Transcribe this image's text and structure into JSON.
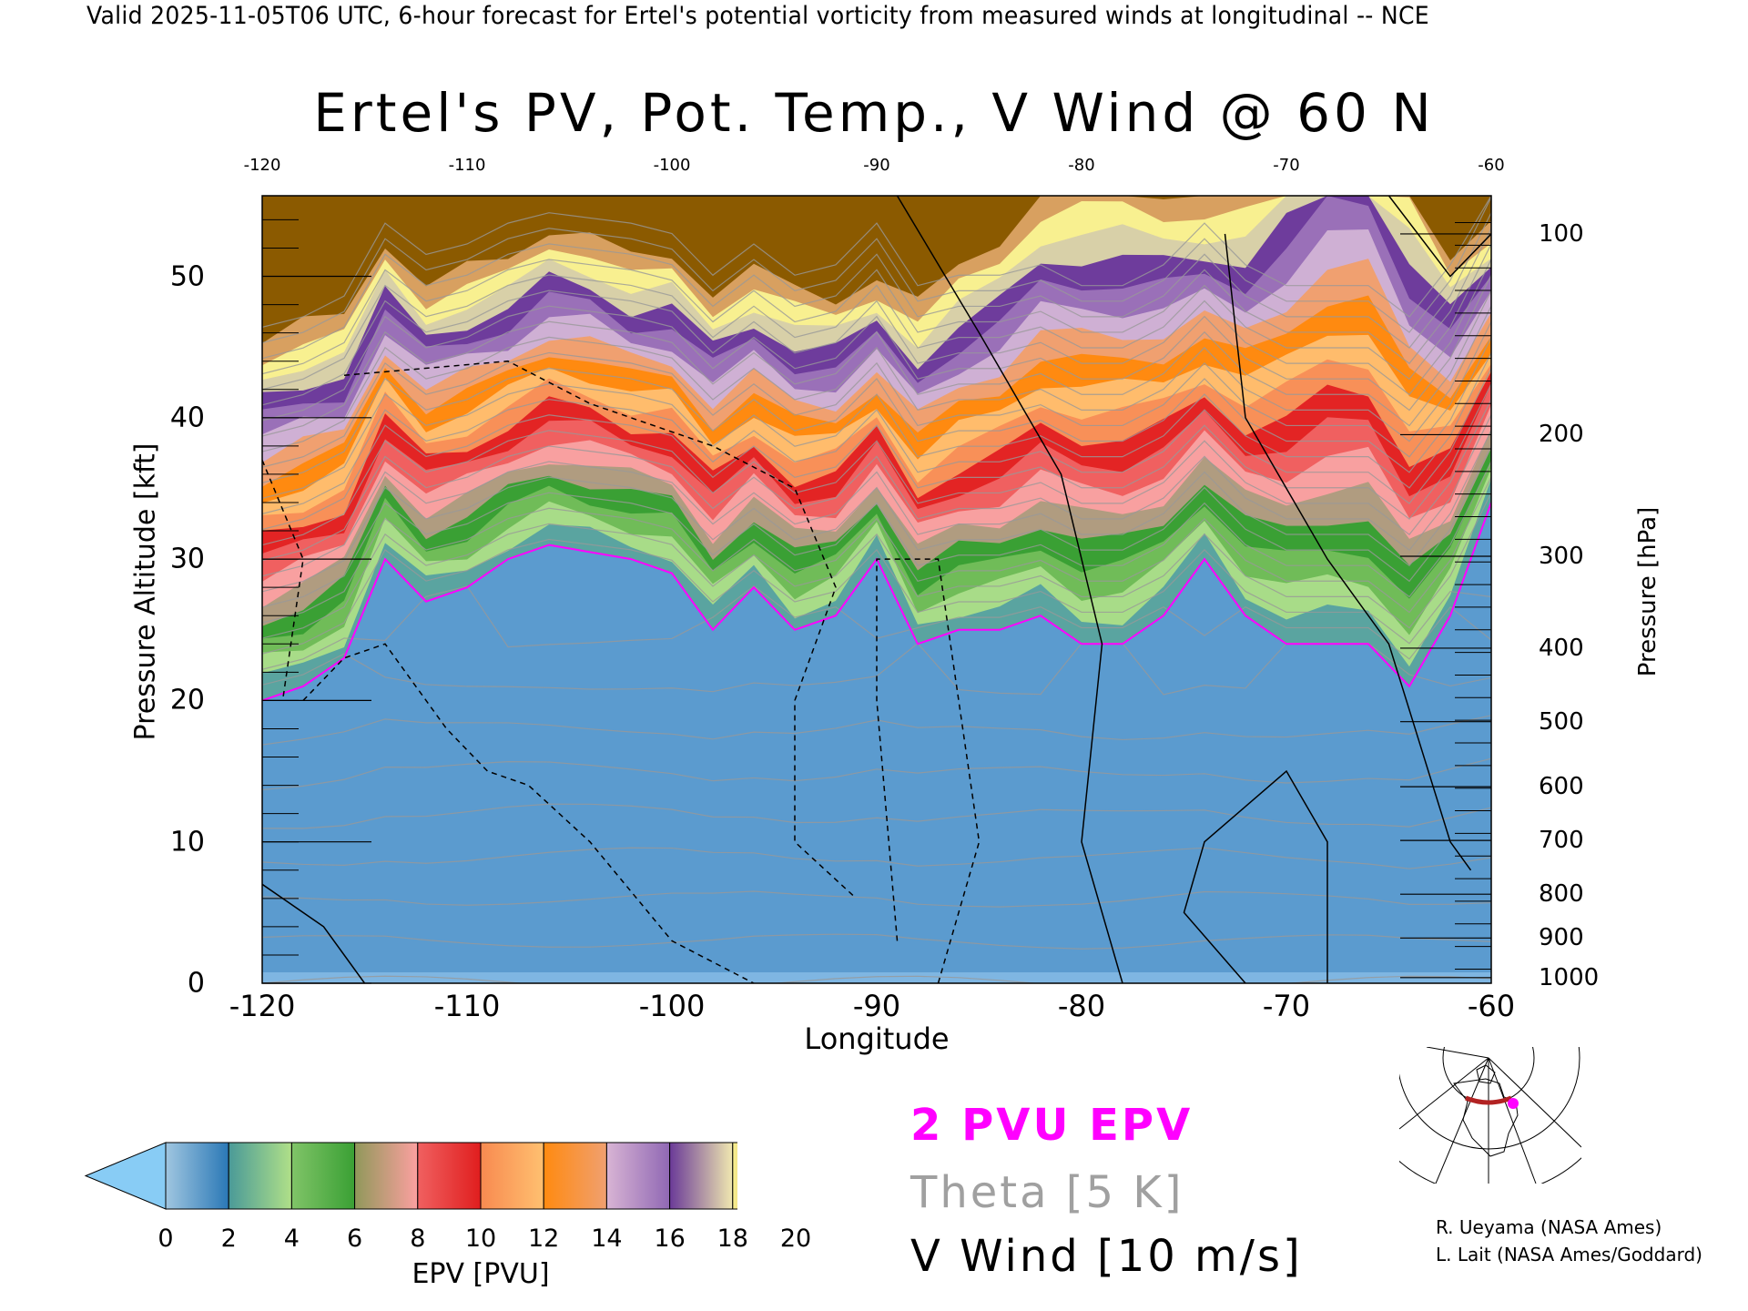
{
  "header": "Valid 2025-11-05T06 UTC, 6-hour forecast for Ertel's potential vorticity from measured winds at longitudinal -- NCE",
  "legend": {
    "pv_line": "2 PVU EPV",
    "theta": "Theta [5 K]",
    "wind": "V Wind [10 m/s]",
    "colors": {
      "pv_line": "#ff00ff",
      "theta": "#a0a0a0",
      "wind": "#000000"
    }
  },
  "credits": [
    "R. Ueyama (NASA Ames)",
    "L. Lait (NASA Ames/Goddard)"
  ],
  "chart_data": {
    "type": "heatmap",
    "title": "Ertel's PV, Pot. Temp., V Wind @ 60 N",
    "xlabel": "Longitude",
    "ylabel": "Pressure Altitude [kft]",
    "y2label": "Pressure [hPa]",
    "xlim": [
      -120,
      -60
    ],
    "ylim": [
      0,
      55.7
    ],
    "x_ticks": [
      "-120",
      "-110",
      "-100",
      "-90",
      "-80",
      "-70",
      "-60"
    ],
    "top_ticks": [
      "-120",
      "-110",
      "-100",
      "-90",
      "-80",
      "-70",
      "-60"
    ],
    "y_ticks": [
      "0",
      "10",
      "20",
      "30",
      "40",
      "50"
    ],
    "pressure_ticks": [
      {
        "label": "100",
        "kft": 53.0
      },
      {
        "label": "200",
        "kft": 38.8
      },
      {
        "label": "300",
        "kft": 30.2
      },
      {
        "label": "400",
        "kft": 23.7
      },
      {
        "label": "500",
        "kft": 18.5
      },
      {
        "label": "600",
        "kft": 13.9
      },
      {
        "label": "700",
        "kft": 10.1
      },
      {
        "label": "800",
        "kft": 6.3
      },
      {
        "label": "900",
        "kft": 3.2
      },
      {
        "label": "1000",
        "kft": 0.4
      }
    ],
    "colorbar": {
      "label": "EPV [PVU]",
      "ticks": [
        "0",
        "2",
        "4",
        "6",
        "8",
        "10",
        "12",
        "14",
        "16",
        "18",
        "20"
      ],
      "under_color": "#88ccf5",
      "over_color": "#8b5a00",
      "bands": [
        [
          "#a0c6e0",
          "#2a78b6"
        ],
        [
          "#4a9a98",
          "#b0e088"
        ],
        [
          "#80c468",
          "#3aa034"
        ],
        [
          "#90985a",
          "#fca0a0"
        ],
        [
          "#f06060",
          "#e01e1e"
        ],
        [
          "#f88a50",
          "#ffc070"
        ],
        [
          "#ff8a10",
          "#f0a070"
        ],
        [
          "#d8b4d4",
          "#9068b4"
        ],
        [
          "#6a3a98",
          "#f0e8b0"
        ],
        [
          "#f8f090",
          "#b86830"
        ]
      ]
    },
    "longitudes": [
      -120,
      -118,
      -116,
      -114,
      -112,
      -110,
      -108,
      -106,
      -104,
      -102,
      -100,
      -98,
      -96,
      -94,
      -92,
      -90,
      -88,
      -86,
      -84,
      -82,
      -80,
      -78,
      -76,
      -74,
      -72,
      -70,
      -68,
      -66,
      -64,
      -62,
      -60
    ],
    "tropopause_2pvu_kft": [
      20,
      21,
      23,
      30,
      27,
      28,
      30,
      31,
      30.5,
      30,
      29,
      25,
      28,
      25,
      26,
      30,
      24,
      25,
      25,
      26,
      24,
      24,
      26,
      30,
      26,
      24,
      24,
      24,
      21,
      26,
      34
    ],
    "pv_lapse_pvu_per_kft": [
      0.7,
      0.7,
      0.75,
      0.8,
      0.8,
      0.8,
      0.85,
      0.8,
      0.8,
      0.85,
      0.8,
      0.75,
      0.8,
      0.75,
      0.8,
      0.9,
      0.75,
      0.7,
      0.65,
      0.6,
      0.55,
      0.55,
      0.6,
      0.7,
      0.6,
      0.5,
      0.45,
      0.45,
      0.5,
      0.7,
      0.9
    ],
    "pv_level_colors": [
      "#5aa4a0",
      "#a8dc88",
      "#70bc58",
      "#3aa034",
      "#b09c80",
      "#f8a0a0",
      "#f06060",
      "#e32424",
      "#f89058",
      "#ffbc6c",
      "#ff8a10",
      "#f0a070",
      "#cfb0d4",
      "#9a70b8",
      "#6e3c9c",
      "#d8d0a8",
      "#f8f090",
      "#d8a060",
      "#8b5a00"
    ],
    "troposphere_color": "#5b9bcf",
    "theta_levels_K": {
      "min": 270,
      "max": 420,
      "step": 5
    },
    "v_wind_contours": [
      {
        "value": 0,
        "style": "solid",
        "points": [
          [
            -89,
            55.7
          ],
          [
            -85,
            46
          ],
          [
            -81,
            36
          ],
          [
            -79,
            24
          ],
          [
            -80,
            10
          ],
          [
            -78,
            0
          ]
        ]
      },
      {
        "value": 0,
        "style": "solid",
        "points": [
          [
            -120,
            7
          ],
          [
            -117,
            4
          ],
          [
            -115,
            0
          ]
        ]
      },
      {
        "value": 10,
        "style": "solid",
        "points": [
          [
            -73,
            53
          ],
          [
            -72,
            40
          ],
          [
            -68,
            30
          ],
          [
            -65,
            24
          ],
          [
            -62,
            10
          ],
          [
            -61,
            8
          ]
        ]
      },
      {
        "value": 10,
        "style": "solid",
        "points": [
          [
            -72,
            0
          ],
          [
            -75,
            5
          ],
          [
            -74,
            10
          ],
          [
            -70,
            15
          ],
          [
            -68,
            10
          ],
          [
            -68,
            0
          ]
        ]
      },
      {
        "value": 10,
        "style": "solid",
        "points": [
          [
            -65,
            55.7
          ],
          [
            -62,
            50
          ],
          [
            -60,
            53
          ]
        ]
      },
      {
        "value": -10,
        "style": "dashed",
        "points": [
          [
            -120,
            37
          ],
          [
            -118,
            30
          ],
          [
            -119,
            20
          ]
        ]
      },
      {
        "value": -10,
        "style": "dashed",
        "points": [
          [
            -118,
            20
          ],
          [
            -116,
            23
          ],
          [
            -114,
            24
          ],
          [
            -111,
            18
          ],
          [
            -109,
            15
          ],
          [
            -107,
            14
          ],
          [
            -104,
            10
          ],
          [
            -100,
            3
          ],
          [
            -96,
            0
          ]
        ]
      },
      {
        "value": -10,
        "style": "dashed",
        "points": [
          [
            -116,
            43
          ],
          [
            -108,
            44
          ],
          [
            -104,
            41
          ],
          [
            -98,
            38
          ],
          [
            -94,
            35
          ],
          [
            -92,
            28
          ],
          [
            -94,
            20
          ],
          [
            -94,
            10
          ],
          [
            -91,
            6
          ]
        ]
      },
      {
        "value": -10,
        "style": "dashed",
        "points": [
          [
            -89,
            3
          ],
          [
            -90,
            20
          ],
          [
            -90,
            30
          ],
          [
            -87,
            30
          ],
          [
            -86,
            20
          ],
          [
            -85,
            10
          ],
          [
            -87,
            0
          ]
        ]
      }
    ]
  }
}
